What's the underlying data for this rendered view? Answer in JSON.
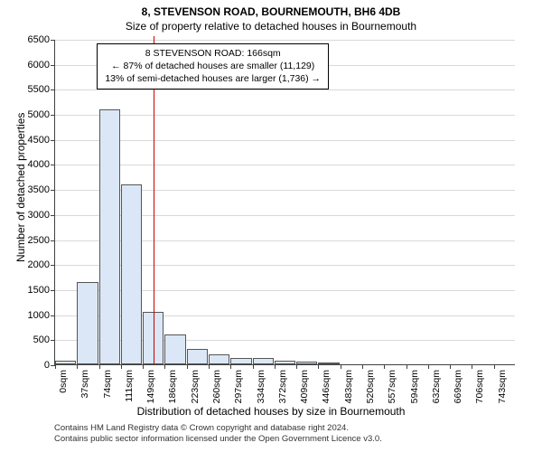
{
  "title_main": "8, STEVENSON ROAD, BOURNEMOUTH, BH6 4DB",
  "title_sub": "Size of property relative to detached houses in Bournemouth",
  "chart": {
    "type": "histogram",
    "ylim": [
      0,
      6500
    ],
    "ytick_step": 500,
    "xticks": [
      "0sqm",
      "37sqm",
      "74sqm",
      "111sqm",
      "149sqm",
      "186sqm",
      "223sqm",
      "260sqm",
      "297sqm",
      "334sqm",
      "372sqm",
      "409sqm",
      "446sqm",
      "483sqm",
      "520sqm",
      "557sqm",
      "594sqm",
      "632sqm",
      "669sqm",
      "706sqm",
      "743sqm"
    ],
    "bar_values": [
      80,
      1650,
      5100,
      3600,
      1050,
      600,
      300,
      200,
      120,
      120,
      80,
      60,
      30,
      0,
      0,
      0,
      0,
      0,
      0,
      0,
      0
    ],
    "bar_fill": "#dbe7f6",
    "bar_border": "#555555",
    "grid_color": "#d9d9d9",
    "background_color": "#ffffff",
    "reference_line": {
      "x_index": 4.5,
      "color": "#cc0000"
    },
    "annotation": {
      "line1": "8 STEVENSON ROAD: 166sqm",
      "line2": "← 87% of detached houses are smaller (11,129)",
      "line3": "13% of semi-detached houses are larger (1,736) →",
      "x_center_index": 7.2
    },
    "y_label": "Number of detached properties",
    "x_label": "Distribution of detached houses by size in Bournemouth"
  },
  "footer": {
    "line1": "Contains HM Land Registry data © Crown copyright and database right 2024.",
    "line2": "Contains public sector information licensed under the Open Government Licence v3.0."
  }
}
